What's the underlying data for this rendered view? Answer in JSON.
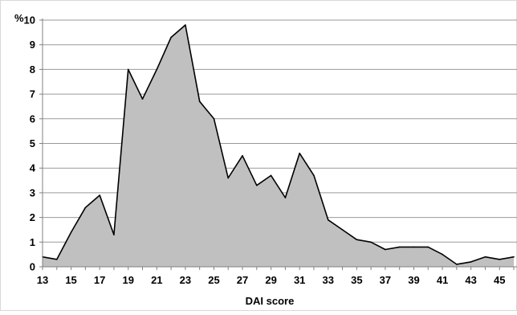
{
  "chart_data": {
    "type": "area",
    "xlabel": "DAI score",
    "ylabel": "%",
    "ylim": [
      0,
      10
    ],
    "yticks": [
      0,
      1,
      2,
      3,
      4,
      5,
      6,
      7,
      8,
      9,
      10
    ],
    "xlim": [
      13,
      46
    ],
    "xticks": [
      13,
      15,
      17,
      19,
      21,
      23,
      25,
      27,
      29,
      31,
      33,
      35,
      37,
      39,
      41,
      43,
      45
    ],
    "grid": true,
    "x": [
      13,
      14,
      15,
      16,
      17,
      18,
      19,
      20,
      21,
      22,
      23,
      24,
      25,
      26,
      27,
      28,
      29,
      30,
      31,
      32,
      33,
      34,
      35,
      36,
      37,
      38,
      39,
      40,
      41,
      42,
      43,
      44,
      45,
      46
    ],
    "series": [
      {
        "values": [
          0.4,
          0.3,
          1.4,
          2.4,
          2.9,
          1.3,
          8.0,
          6.8,
          8.0,
          9.3,
          9.8,
          6.7,
          6.0,
          3.6,
          4.5,
          3.3,
          3.7,
          2.8,
          4.6,
          3.7,
          1.9,
          1.5,
          1.1,
          1.0,
          0.7,
          0.8,
          0.8,
          0.8,
          0.5,
          0.1,
          0.2,
          0.4,
          0.3,
          0.4
        ]
      }
    ],
    "colors": {
      "fill": "#c0c0c0",
      "line": "#000000",
      "grid": "#9a9a9a",
      "axis": "#808080"
    }
  }
}
